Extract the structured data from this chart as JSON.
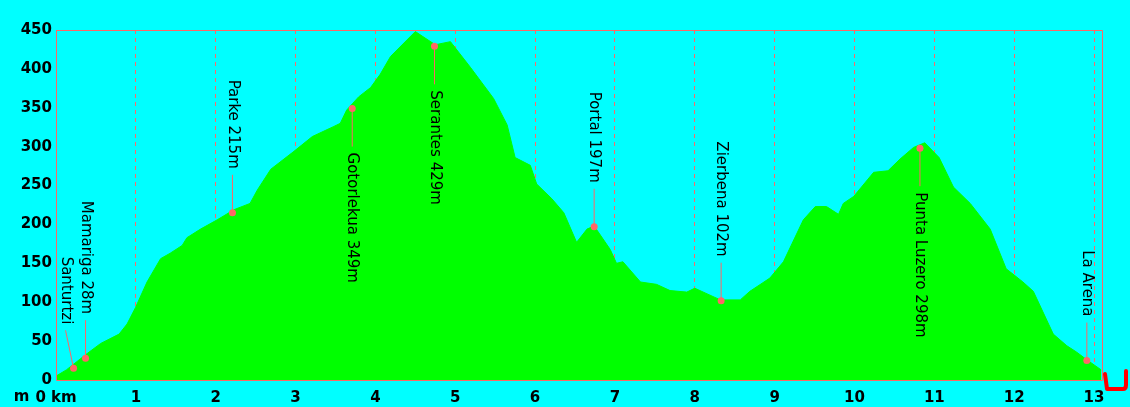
{
  "chart_data": {
    "type": "area",
    "ylabel": "m",
    "xlim": [
      0,
      13.1
    ],
    "xticks": [
      {
        "value": 0,
        "label": "0 km"
      },
      1,
      2,
      3,
      4,
      5,
      6,
      7,
      8,
      9,
      10,
      11,
      12,
      13
    ],
    "ylim": [
      0,
      450
    ],
    "yticks": [
      0,
      50,
      100,
      150,
      200,
      250,
      300,
      350,
      400,
      450
    ],
    "grid": "x",
    "line_style": "dashed",
    "series": [
      {
        "color": "#00ff00",
        "x": [
          0,
          0.13,
          0.39,
          0.56,
          0.79,
          0.89,
          0.995,
          1.14,
          1.31,
          1.43,
          1.58,
          1.64,
          1.81,
          2.02,
          2.23,
          2.43,
          2.52,
          2.69,
          2.98,
          3.21,
          3.48,
          3.56,
          3.64,
          3.79,
          3.94,
          4.06,
          4.19,
          4.5,
          4.75,
          4.94,
          5.19,
          5.48,
          5.65,
          5.75,
          5.94,
          6.02,
          6.21,
          6.36,
          6.52,
          6.65,
          6.74,
          6.94,
          7.02,
          7.1,
          7.32,
          7.52,
          7.69,
          7.9,
          8,
          8.32,
          8.57,
          8.69,
          8.94,
          9.11,
          9.36,
          9.51,
          9.65,
          9.8,
          9.86,
          9.99,
          10.24,
          10.42,
          10.57,
          10.74,
          10.88,
          11.06,
          11.24,
          11.45,
          11.7,
          11.9,
          12.11,
          12.24,
          12.49,
          12.66,
          12.78,
          12.91,
          13.09
        ],
        "values": [
          5,
          13,
          34,
          47,
          59,
          72,
          93,
          126,
          156,
          163,
          173,
          183,
          194,
          206,
          219,
          227,
          244,
          271,
          294,
          313,
          326,
          330,
          347,
          364,
          376,
          393,
          416,
          448,
          431,
          435,
          402,
          362,
          328,
          286,
          276,
          252,
          233,
          215,
          177,
          194,
          198,
          168,
          150,
          152,
          126,
          123,
          115,
          113,
          118,
          103,
          103,
          114,
          131,
          152,
          206,
          223,
          223,
          213,
          227,
          236,
          267,
          269,
          284,
          299,
          305,
          286,
          248,
          227,
          194,
          143,
          126,
          114,
          59,
          44,
          36,
          26,
          13
        ]
      }
    ],
    "annotations": [
      {
        "text": "Santurtzi",
        "x": 0.22,
        "y": 15
      },
      {
        "text": "Mamariga 28m",
        "x": 0.37,
        "y": 28
      },
      {
        "text": "Parke 215m",
        "x": 2.21,
        "y": 215
      },
      {
        "text": "Gotorlekua 349m",
        "x": 3.71,
        "y": 349
      },
      {
        "text": "Serantes 429m",
        "x": 4.74,
        "y": 429
      },
      {
        "text": "Portal 197m",
        "x": 6.74,
        "y": 197
      },
      {
        "text": "Zierbena 102m",
        "x": 8.33,
        "y": 102
      },
      {
        "text": "Punta Luzero 298m",
        "x": 10.82,
        "y": 298
      },
      {
        "text": "La Arena",
        "x": 12.91,
        "y": 25
      }
    ]
  }
}
